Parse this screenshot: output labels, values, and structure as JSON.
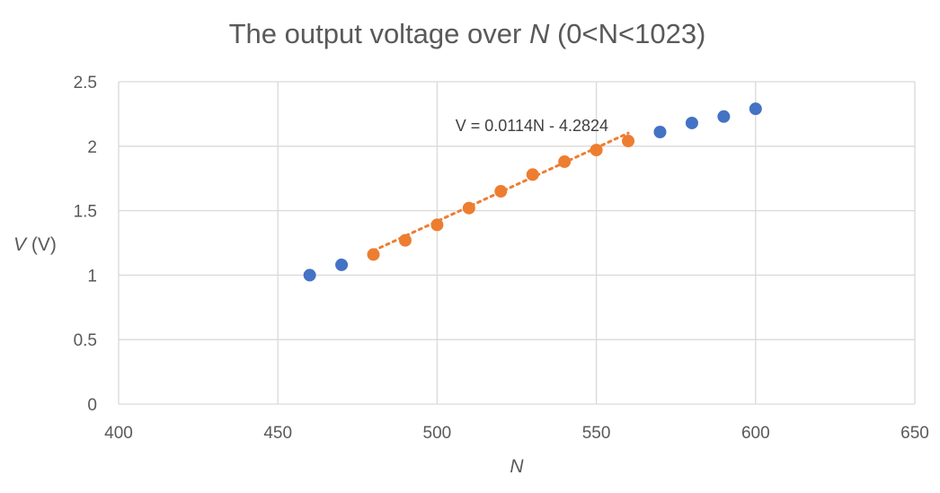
{
  "chart_data": {
    "type": "scatter",
    "title": {
      "main": "The output voltage over ",
      "var": "N",
      "suffix": " (0<N<1023)"
    },
    "xlabel": "N",
    "ylabel": {
      "var": "V",
      "unit": " (V)"
    },
    "xlim": [
      400,
      650
    ],
    "ylim": [
      0,
      2.5
    ],
    "xticks": [
      "400",
      "450",
      "500",
      "550",
      "600",
      "650"
    ],
    "yticks": [
      "0",
      "0.5",
      "1",
      "1.5",
      "2",
      "2.5"
    ],
    "grid": true,
    "series": [
      {
        "color": "#4472c4",
        "x": [
          460,
          470,
          570,
          580,
          590,
          600
        ],
        "y": [
          1.0,
          1.08,
          2.11,
          2.18,
          2.23,
          2.29
        ]
      },
      {
        "color": "#ed7d31",
        "x": [
          480,
          490,
          500,
          510,
          520,
          530,
          540,
          550,
          560
        ],
        "y": [
          1.16,
          1.27,
          1.39,
          1.52,
          1.65,
          1.78,
          1.88,
          1.97,
          2.04
        ]
      }
    ],
    "trendline": {
      "label": "V = 0.0114N - 4.2824",
      "slope": 0.0114,
      "intercept": -4.2824,
      "x_range": [
        480,
        560
      ],
      "color": "#ed7d31",
      "style": "dotted"
    }
  }
}
